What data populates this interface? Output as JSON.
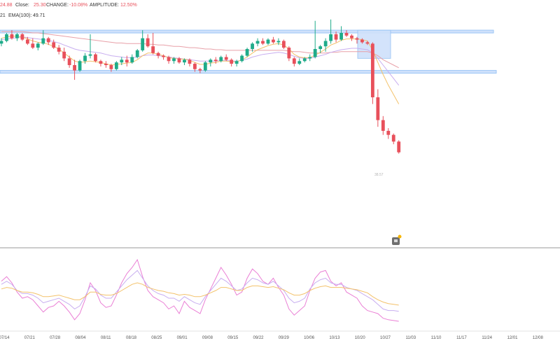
{
  "header": {
    "prefix": "24.88",
    "close_label": "Close:",
    "close_value": "25.30",
    "change_label": "CHANGE:",
    "change_value": "-10.08%",
    "amplitude_label": "AMPLITUDE:",
    "amplitude_value": "12.50%",
    "ema_prefix": "21",
    "ema_label": "EMA(100):",
    "ema_value": "49.71"
  },
  "last_price_label": "38.57",
  "colors": {
    "up": "#1fab89",
    "down": "#e8505b",
    "ema_pink": "#e8a0a8",
    "ema_purple": "#c8aef0",
    "ema_orange": "#f3c26b",
    "magenta": "#ea7fd5",
    "zone": "#9cc6f5",
    "zone_fill": "#cfe1fb"
  },
  "chart_data": [
    {
      "type": "candlestick",
      "x_ticks": [
        "07/14",
        "07/21",
        "07/28",
        "08/04",
        "08/11",
        "08/18",
        "08/25",
        "09/01",
        "09/08",
        "09/15",
        "09/22",
        "09/29",
        "10/06",
        "10/13",
        "10/20",
        "10/27",
        "11/03",
        "11/10",
        "11/17",
        "11/24",
        "12/01",
        "12/08"
      ],
      "y_range": [
        38,
        50
      ],
      "resistance_level": 48.9,
      "support_level": 45.9,
      "candles": [
        [
          48.0,
          48.4,
          47.8,
          48.2
        ],
        [
          48.2,
          48.8,
          48.1,
          48.7
        ],
        [
          48.7,
          49.0,
          48.3,
          48.4
        ],
        [
          48.4,
          48.8,
          48.2,
          48.7
        ],
        [
          48.7,
          48.8,
          48.2,
          48.3
        ],
        [
          48.3,
          48.5,
          47.9,
          48.0
        ],
        [
          48.0,
          48.4,
          47.6,
          47.7
        ],
        [
          47.7,
          48.1,
          47.5,
          48.0
        ],
        [
          48.0,
          49.0,
          47.9,
          48.4
        ],
        [
          48.4,
          48.5,
          47.9,
          48.1
        ],
        [
          48.1,
          48.3,
          47.6,
          47.7
        ],
        [
          47.7,
          47.9,
          47.2,
          47.4
        ],
        [
          47.4,
          47.7,
          46.7,
          46.9
        ],
        [
          46.9,
          47.1,
          46.2,
          46.4
        ],
        [
          46.4,
          46.8,
          45.3,
          46.0
        ],
        [
          46.0,
          46.8,
          45.9,
          46.7
        ],
        [
          46.7,
          47.3,
          46.5,
          47.1
        ],
        [
          47.1,
          48.7,
          46.9,
          47.2
        ],
        [
          47.2,
          47.3,
          46.6,
          46.7
        ],
        [
          46.7,
          46.8,
          46.3,
          46.5
        ],
        [
          46.5,
          46.7,
          46.2,
          46.4
        ],
        [
          46.4,
          46.5,
          45.9,
          46.1
        ],
        [
          46.1,
          46.7,
          46.0,
          46.6
        ],
        [
          46.6,
          47.0,
          46.4,
          46.8
        ],
        [
          46.8,
          47.1,
          46.3,
          46.6
        ],
        [
          46.6,
          47.2,
          46.5,
          47.0
        ],
        [
          47.0,
          47.6,
          46.9,
          47.5
        ],
        [
          47.5,
          49.0,
          47.4,
          48.4
        ],
        [
          48.4,
          48.7,
          47.7,
          47.8
        ],
        [
          47.8,
          48.8,
          47.2,
          47.3
        ],
        [
          47.3,
          47.4,
          46.9,
          47.1
        ],
        [
          47.1,
          47.2,
          46.8,
          47.0
        ],
        [
          47.0,
          47.1,
          46.5,
          46.7
        ],
        [
          46.7,
          47.0,
          46.5,
          46.9
        ],
        [
          46.9,
          47.0,
          46.5,
          46.6
        ],
        [
          46.6,
          46.9,
          46.4,
          46.8
        ],
        [
          46.8,
          46.9,
          46.3,
          46.5
        ],
        [
          46.5,
          46.6,
          45.9,
          46.1
        ],
        [
          46.1,
          46.2,
          45.8,
          46.0
        ],
        [
          46.0,
          46.7,
          45.9,
          46.6
        ],
        [
          46.6,
          46.9,
          46.3,
          46.8
        ],
        [
          46.8,
          47.0,
          46.5,
          46.7
        ],
        [
          46.7,
          47.1,
          46.6,
          47.0
        ],
        [
          47.0,
          47.2,
          46.7,
          46.8
        ],
        [
          46.8,
          46.9,
          46.3,
          46.5
        ],
        [
          46.5,
          46.8,
          46.3,
          46.7
        ],
        [
          46.7,
          47.2,
          46.6,
          47.1
        ],
        [
          47.1,
          47.7,
          47.0,
          47.6
        ],
        [
          47.6,
          48.1,
          47.4,
          48.0
        ],
        [
          48.0,
          48.4,
          47.8,
          48.2
        ],
        [
          48.2,
          48.4,
          47.9,
          48.0
        ],
        [
          48.0,
          48.4,
          47.9,
          48.3
        ],
        [
          48.3,
          48.5,
          48.0,
          48.1
        ],
        [
          48.1,
          48.4,
          47.9,
          48.2
        ],
        [
          48.2,
          48.3,
          47.6,
          47.7
        ],
        [
          47.7,
          47.8,
          46.7,
          46.9
        ],
        [
          46.9,
          47.0,
          46.3,
          46.5
        ],
        [
          46.5,
          46.9,
          46.4,
          46.7
        ],
        [
          46.7,
          47.0,
          46.6,
          46.9
        ],
        [
          46.9,
          47.2,
          46.7,
          47.0
        ],
        [
          47.0,
          49.7,
          46.9,
          47.6
        ],
        [
          47.6,
          47.9,
          47.3,
          47.8
        ],
        [
          47.8,
          48.4,
          47.4,
          48.2
        ],
        [
          48.2,
          49.8,
          48.0,
          48.7
        ],
        [
          48.7,
          48.9,
          48.1,
          48.3
        ],
        [
          48.3,
          49.3,
          48.2,
          48.8
        ],
        [
          48.8,
          49.0,
          48.5,
          48.6
        ],
        [
          48.6,
          48.7,
          48.2,
          48.4
        ],
        [
          48.4,
          48.5,
          48.0,
          48.3
        ],
        [
          48.3,
          48.4,
          48.0,
          48.1
        ],
        [
          48.1,
          48.2,
          47.9,
          48.0
        ],
        [
          48.0,
          48.1,
          43.5,
          44.0
        ],
        [
          44.0,
          44.6,
          41.8,
          42.3
        ],
        [
          42.3,
          42.6,
          41.2,
          41.5
        ],
        [
          41.5,
          41.7,
          40.9,
          41.2
        ],
        [
          41.2,
          41.3,
          40.5,
          40.7
        ],
        [
          40.7,
          40.8,
          39.8,
          39.9
        ]
      ],
      "ema_pink": [
        48.9,
        48.9,
        48.9,
        48.9,
        48.9,
        48.85,
        48.8,
        48.8,
        48.75,
        48.7,
        48.65,
        48.6,
        48.55,
        48.5,
        48.45,
        48.4,
        48.35,
        48.3,
        48.25,
        48.2,
        48.15,
        48.1,
        48.05,
        48.05,
        48.0,
        48.0,
        48.0,
        48.0,
        47.95,
        47.95,
        47.9,
        47.9,
        47.85,
        47.8,
        47.8,
        47.75,
        47.7,
        47.7,
        47.65,
        47.6,
        47.6,
        47.55,
        47.55,
        47.5,
        47.5,
        47.5,
        47.5,
        47.5,
        47.5,
        47.5,
        47.5,
        47.5,
        47.5,
        47.5,
        47.5,
        47.45,
        47.4,
        47.4,
        47.35,
        47.3,
        47.3,
        47.3,
        47.3,
        47.35,
        47.35,
        47.4,
        47.4,
        47.4,
        47.4,
        47.4,
        47.4,
        47.3,
        47.1,
        46.8,
        46.6,
        46.4,
        46.2
      ],
      "ema_purple": [
        48.3,
        48.35,
        48.4,
        48.45,
        48.5,
        48.45,
        48.4,
        48.35,
        48.3,
        48.25,
        48.15,
        48.05,
        47.9,
        47.75,
        47.6,
        47.5,
        47.45,
        47.4,
        47.35,
        47.3,
        47.2,
        47.1,
        47.05,
        47.0,
        46.95,
        46.95,
        47.0,
        47.1,
        47.15,
        47.15,
        47.1,
        47.05,
        47.0,
        46.95,
        46.9,
        46.85,
        46.8,
        46.75,
        46.7,
        46.7,
        46.7,
        46.7,
        46.75,
        46.75,
        46.7,
        46.7,
        46.75,
        46.85,
        47.0,
        47.1,
        47.2,
        47.25,
        47.3,
        47.35,
        47.3,
        47.2,
        47.05,
        46.95,
        46.9,
        46.9,
        47.0,
        47.1,
        47.2,
        47.35,
        47.45,
        47.55,
        47.6,
        47.65,
        47.65,
        47.6,
        47.55,
        47.3,
        46.9,
        46.4,
        45.9,
        45.4,
        44.9
      ],
      "ema_orange": [
        48.4,
        48.5,
        48.55,
        48.55,
        48.5,
        48.35,
        48.2,
        48.1,
        48.05,
        47.95,
        47.8,
        47.6,
        47.3,
        47.0,
        46.7,
        46.6,
        46.65,
        46.7,
        46.65,
        46.6,
        46.5,
        46.4,
        46.45,
        46.5,
        46.55,
        46.6,
        46.8,
        47.1,
        47.3,
        47.3,
        47.2,
        47.1,
        46.95,
        46.9,
        46.85,
        46.85,
        46.75,
        46.6,
        46.45,
        46.45,
        46.55,
        46.6,
        46.7,
        46.7,
        46.65,
        46.65,
        46.8,
        47.0,
        47.3,
        47.55,
        47.7,
        47.85,
        47.95,
        48.0,
        47.9,
        47.6,
        47.2,
        47.0,
        46.95,
        46.95,
        47.15,
        47.35,
        47.6,
        47.9,
        48.05,
        48.25,
        48.35,
        48.35,
        48.35,
        48.3,
        48.2,
        47.5,
        46.6,
        45.7,
        44.9,
        44.2,
        43.5
      ]
    },
    {
      "type": "line",
      "y_range": [
        0,
        100
      ],
      "series": [
        {
          "name": "",
          "values": [
            62,
            68,
            60,
            48,
            40,
            42,
            38,
            30,
            22,
            28,
            30,
            36,
            30,
            22,
            12,
            20,
            38,
            60,
            50,
            34,
            28,
            30,
            44,
            60,
            72,
            80,
            90,
            68,
            50,
            42,
            38,
            34,
            26,
            30,
            20,
            36,
            28,
            24,
            20,
            38,
            52,
            66,
            80,
            70,
            58,
            44,
            48,
            66,
            78,
            72,
            62,
            58,
            66,
            54,
            44,
            26,
            18,
            24,
            30,
            50,
            66,
            74,
            76,
            62,
            56,
            60,
            48,
            44,
            40,
            30,
            24,
            22,
            20,
            14,
            12,
            11,
            10
          ]
        },
        {
          "name": "",
          "values": [
            58,
            62,
            58,
            50,
            46,
            46,
            44,
            40,
            34,
            36,
            38,
            40,
            36,
            32,
            26,
            30,
            42,
            56,
            52,
            44,
            40,
            40,
            48,
            56,
            64,
            70,
            76,
            66,
            56,
            50,
            46,
            44,
            40,
            40,
            36,
            42,
            38,
            34,
            32,
            42,
            50,
            58,
            66,
            62,
            56,
            50,
            52,
            60,
            66,
            64,
            60,
            58,
            62,
            56,
            50,
            40,
            34,
            36,
            40,
            52,
            60,
            64,
            66,
            60,
            58,
            58,
            54,
            52,
            50,
            46,
            42,
            38,
            32,
            26,
            24,
            24,
            23
          ]
        },
        {
          "name": "",
          "values": [
            52,
            54,
            53,
            50,
            48,
            48,
            47,
            45,
            42,
            42,
            43,
            44,
            42,
            40,
            38,
            38,
            42,
            48,
            48,
            45,
            44,
            44,
            46,
            50,
            54,
            58,
            60,
            58,
            54,
            52,
            50,
            49,
            47,
            46,
            44,
            45,
            44,
            42,
            42,
            44,
            47,
            50,
            54,
            54,
            52,
            50,
            50,
            54,
            56,
            56,
            55,
            54,
            55,
            53,
            51,
            47,
            44,
            44,
            46,
            50,
            53,
            55,
            56,
            54,
            54,
            54,
            53,
            52,
            51,
            49,
            47,
            42,
            38,
            35,
            33,
            32,
            31
          ]
        }
      ]
    }
  ]
}
